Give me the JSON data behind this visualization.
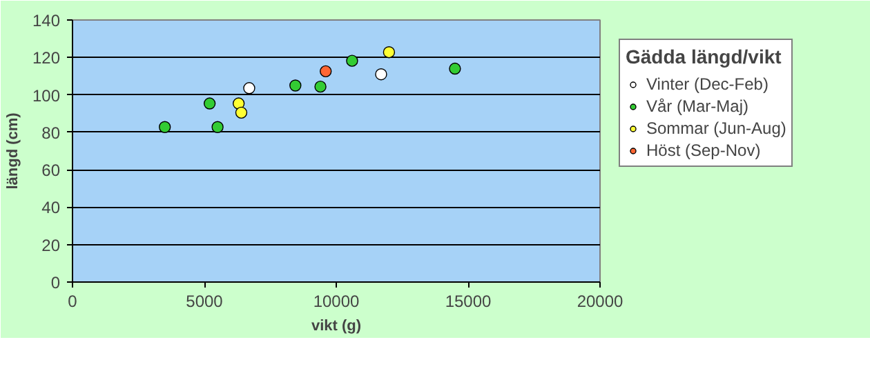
{
  "chart_data": {
    "type": "scatter",
    "xlabel": "vikt (g)",
    "ylabel": "längd (cm)",
    "legend_title": "Gädda längd/vikt",
    "xlim": [
      0,
      20000
    ],
    "xticks": [
      0,
      5000,
      10000,
      15000,
      20000
    ],
    "ylim": [
      0,
      140
    ],
    "yticks": [
      0,
      20,
      40,
      60,
      80,
      100,
      120,
      140
    ],
    "grid": "y",
    "legend": "right",
    "marker": "circle",
    "series": [
      {
        "name": "Vinter (Dec-Feb)",
        "color": "#ffffff",
        "x": [
          6700,
          11700
        ],
        "values": [
          103.6,
          111
        ]
      },
      {
        "name": "Vår (Mar-Maj)",
        "color": "#33cc33",
        "x": [
          3500,
          5200,
          5500,
          8450,
          9400,
          10600,
          14500
        ],
        "values": [
          82.8,
          95.4,
          82.8,
          105,
          104.4,
          118.2,
          114
        ]
      },
      {
        "name": "Sommar (Jun-Aug)",
        "color": "#ffff33",
        "x": [
          6300,
          6400,
          12000
        ],
        "values": [
          95.4,
          90.5,
          122.8
        ]
      },
      {
        "name": "Höst (Sep-Nov)",
        "color": "#ff6633",
        "x": [
          9600
        ],
        "values": [
          112.6
        ]
      }
    ]
  }
}
